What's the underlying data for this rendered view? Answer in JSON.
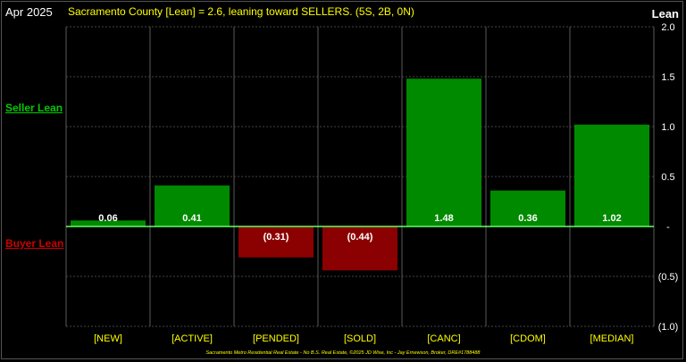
{
  "header": {
    "period": "Apr 2025",
    "title": "Sacramento County [Lean] = 2.6, leaning toward SELLERS. (5S, 2B, 0N)",
    "y_axis_label": "Lean"
  },
  "side_labels": {
    "seller": "Seller Lean",
    "buyer": "Buyer Lean"
  },
  "footer": "Sacramento Metro Residential Real Estate - No B.S. Real Estate, ©2025 JD Wise, Inc - Jay Ernewson, Broker, DRE#1788488",
  "colors": {
    "positive": "#008a00",
    "negative": "#8b0000",
    "baseline": "#66ff66",
    "grid": "#444444",
    "tick_label": "#ffffff",
    "category_label": "#ffff00",
    "value_label": "#ffffff"
  },
  "chart_data": {
    "type": "bar",
    "title": "Sacramento County [Lean] = 2.6, leaning toward SELLERS. (5S, 2B, 0N)",
    "xlabel": "",
    "ylabel": "Lean",
    "categories": [
      "[NEW]",
      "[ACTIVE]",
      "[PENDED]",
      "[SOLD]",
      "[CANC]",
      "[CDOM]",
      "[MEDIAN]"
    ],
    "values": [
      0.06,
      0.41,
      -0.31,
      -0.44,
      1.48,
      0.36,
      1.02
    ],
    "value_labels": [
      "0.06",
      "0.41",
      "(0.31)",
      "(0.44)",
      "1.48",
      "0.36",
      "1.02"
    ],
    "ylim": [
      -1.0,
      2.0
    ],
    "y_ticks": [
      2.0,
      1.5,
      1.0,
      0.5,
      0,
      -0.5,
      -1.0
    ],
    "y_tick_labels": [
      "2.0",
      "1.5",
      "1.0",
      "0.5",
      "-",
      "(0.5)",
      "(1.0)"
    ],
    "grid": true
  }
}
